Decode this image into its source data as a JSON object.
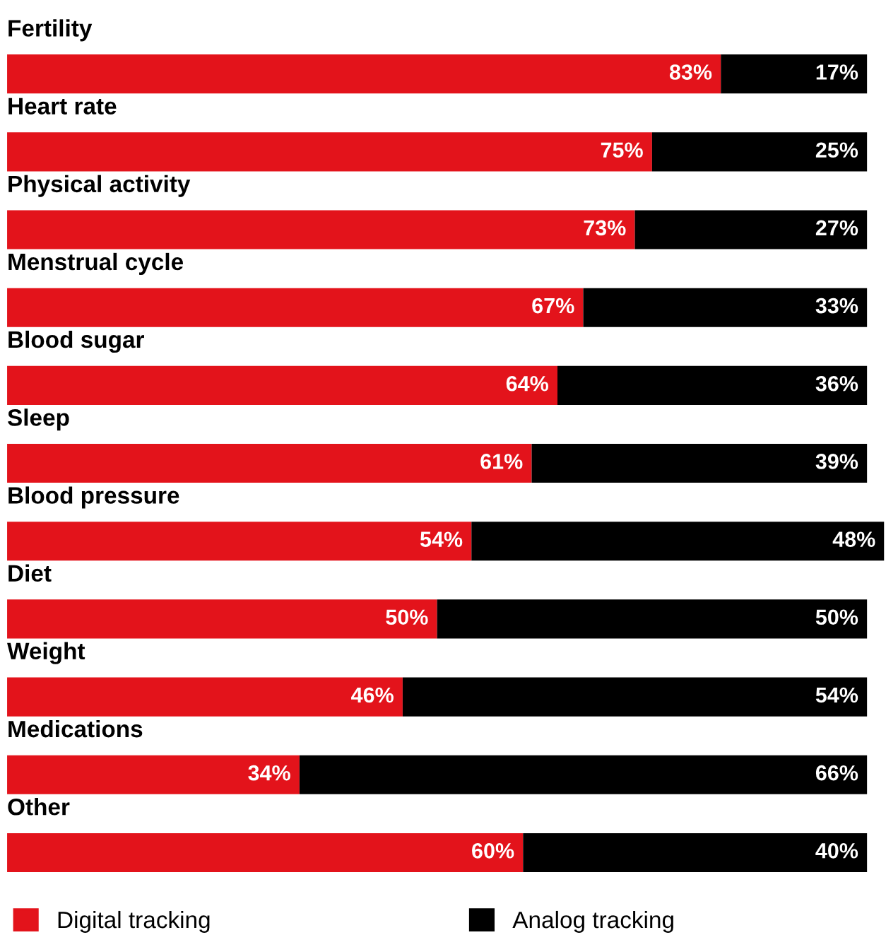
{
  "chart_data": {
    "type": "bar",
    "orientation": "horizontal",
    "stacked": true,
    "legend": "bottom",
    "categories": [
      "Fertility",
      "Heart rate",
      "Physical activity",
      "Menstrual cycle",
      "Blood sugar",
      "Sleep",
      "Blood pressure",
      "Diet",
      "Weight",
      "Medications",
      "Other"
    ],
    "series": [
      {
        "name": "Digital tracking",
        "color": "#e3131b",
        "values": [
          83,
          75,
          73,
          67,
          64,
          61,
          54,
          50,
          46,
          34,
          60
        ],
        "value_labels": [
          "83%",
          "75%",
          "73%",
          "67%",
          "64%",
          "61%",
          "54%",
          "50%",
          "46%",
          "34%",
          "60%"
        ]
      },
      {
        "name": "Analog tracking",
        "color": "#000000",
        "values": [
          17,
          25,
          27,
          33,
          36,
          39,
          48,
          50,
          54,
          66,
          40
        ],
        "value_labels": [
          "17%",
          "25%",
          "27%",
          "33%",
          "36%",
          "39%",
          "48%",
          "50%",
          "54%",
          "66%",
          "40%"
        ]
      }
    ]
  }
}
